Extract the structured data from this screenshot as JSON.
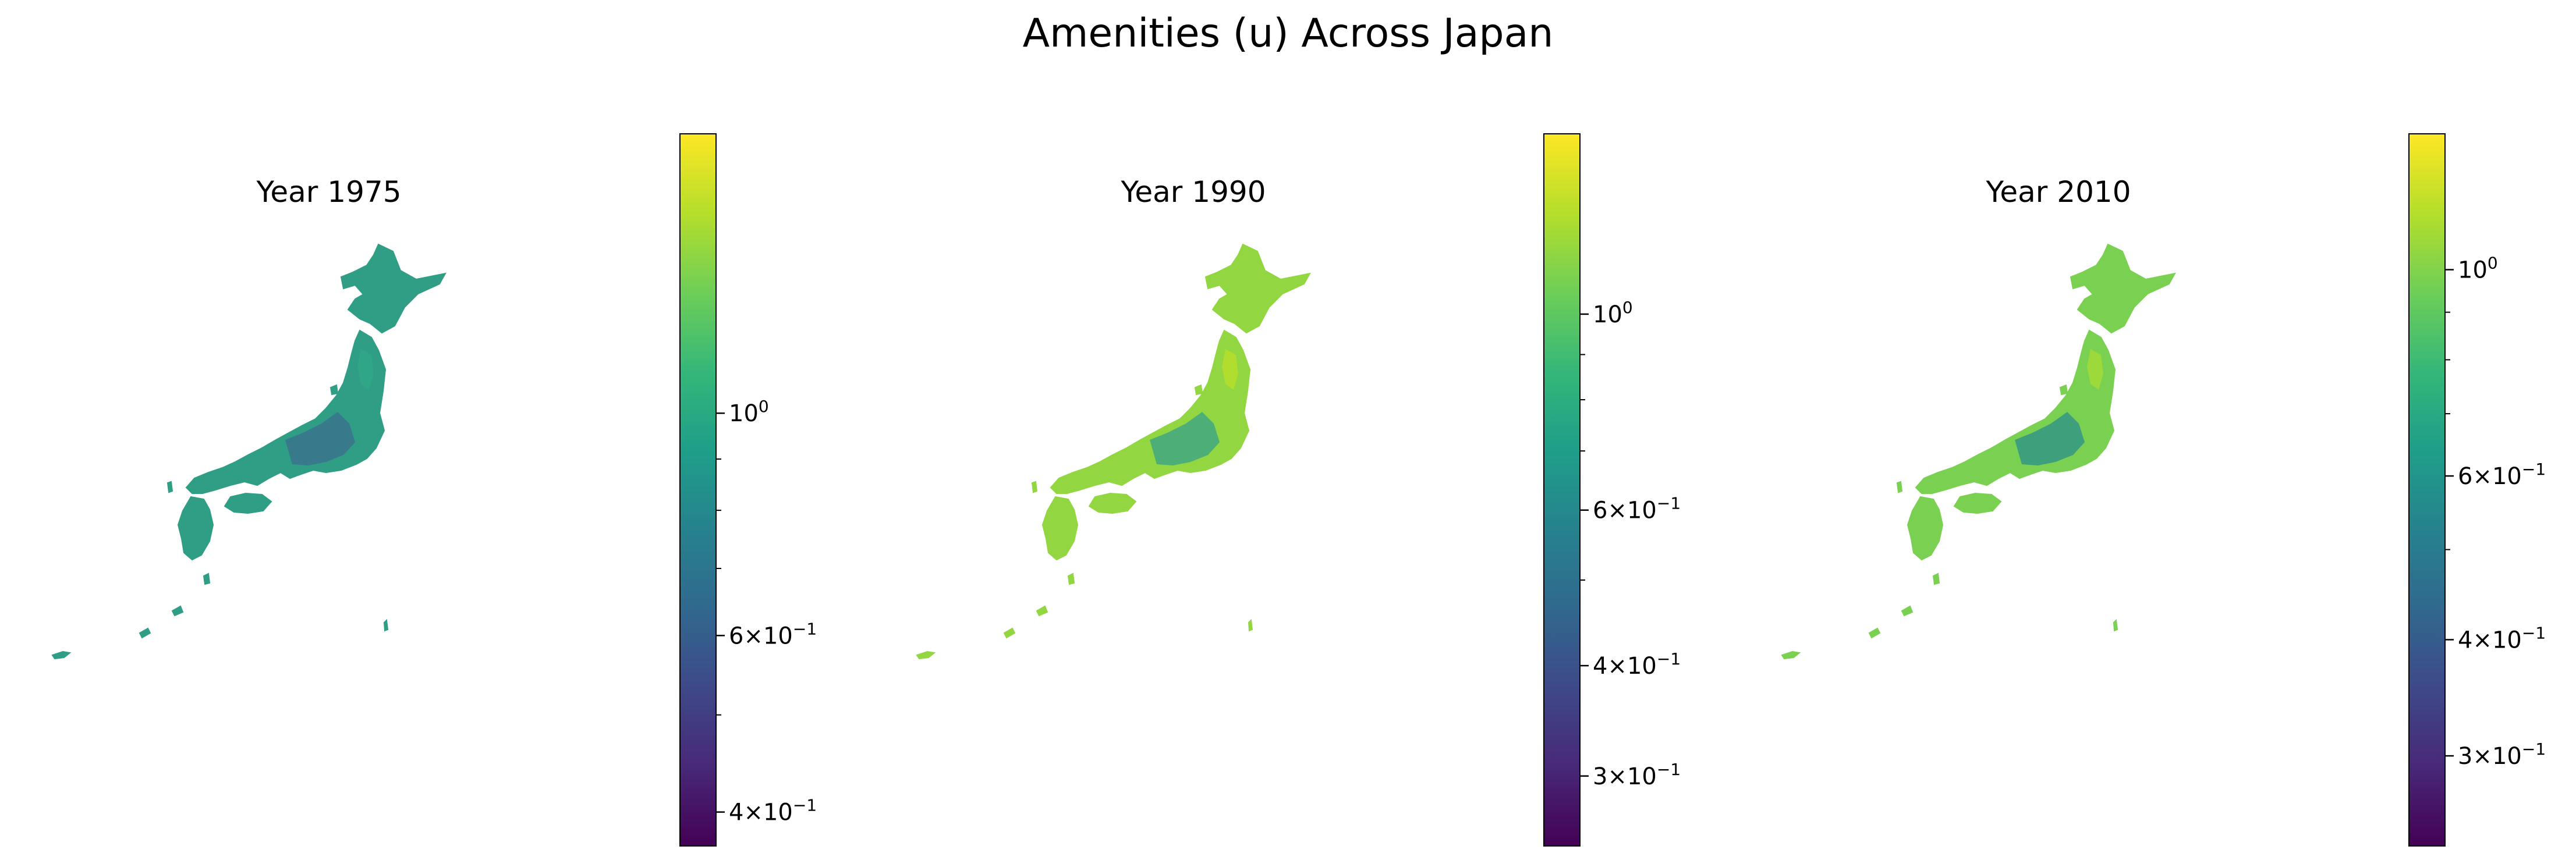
{
  "title": "Amenities (u) Across Japan",
  "colormap": "viridis",
  "colormap_stops": [
    "#440154",
    "#482878",
    "#3e4989",
    "#31688e",
    "#26828e",
    "#1f9e89",
    "#35b779",
    "#6ece58",
    "#b5de2b",
    "#fde725"
  ],
  "panels": [
    {
      "title": "Year 1975",
      "colorbar": {
        "scale": "log",
        "range": [
          0.37,
          1.9
        ],
        "major_ticks": [
          {
            "value": 1.0,
            "mantissa": "",
            "base": "10",
            "exponent": "0"
          },
          {
            "value": 0.6,
            "mantissa": "6×",
            "base": "10",
            "exponent": "−1"
          },
          {
            "value": 0.4,
            "mantissa": "4×",
            "base": "10",
            "exponent": "−1"
          }
        ],
        "minor_ticks": [
          0.5,
          0.7,
          0.8,
          0.9
        ]
      },
      "map": {
        "land_color": "#2f9e84",
        "dense_color": "#3c6c8e",
        "mountain_color": "#2fa886"
      }
    },
    {
      "title": "Year 1990",
      "colorbar": {
        "scale": "log",
        "range": [
          0.25,
          1.6
        ],
        "major_ticks": [
          {
            "value": 1.0,
            "mantissa": "",
            "base": "10",
            "exponent": "0"
          },
          {
            "value": 0.6,
            "mantissa": "6×",
            "base": "10",
            "exponent": "−1"
          },
          {
            "value": 0.4,
            "mantissa": "4×",
            "base": "10",
            "exponent": "−1"
          },
          {
            "value": 0.3,
            "mantissa": "3×",
            "base": "10",
            "exponent": "−1"
          }
        ],
        "minor_ticks": [
          0.5,
          0.7,
          0.8,
          0.9
        ]
      },
      "map": {
        "land_color": "#92d742",
        "dense_color": "#35a089",
        "mountain_color": "#b8de29"
      }
    },
    {
      "title": "Year 2010",
      "colorbar": {
        "scale": "log",
        "range": [
          0.24,
          1.4
        ],
        "major_ticks": [
          {
            "value": 1.0,
            "mantissa": "",
            "base": "10",
            "exponent": "0"
          },
          {
            "value": 0.6,
            "mantissa": "6×",
            "base": "10",
            "exponent": "−1"
          },
          {
            "value": 0.4,
            "mantissa": "4×",
            "base": "10",
            "exponent": "−1"
          },
          {
            "value": 0.3,
            "mantissa": "3×",
            "base": "10",
            "exponent": "−1"
          }
        ],
        "minor_ticks": [
          0.5,
          0.7,
          0.8,
          0.9
        ]
      },
      "map": {
        "land_color": "#7ad151",
        "dense_color": "#2a8e8b",
        "mountain_color": "#a6db35"
      }
    }
  ]
}
